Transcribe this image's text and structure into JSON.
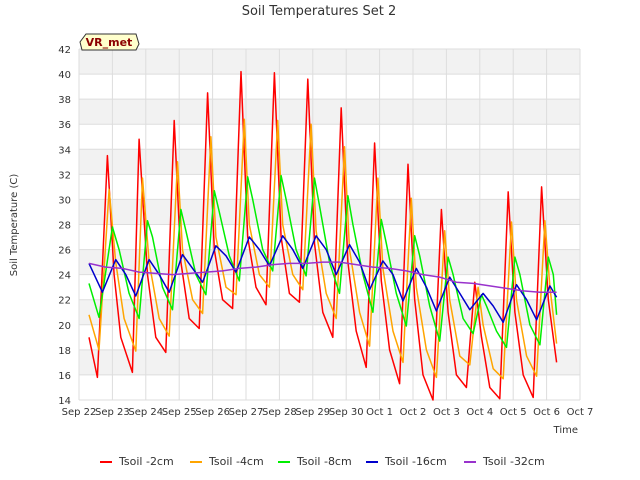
{
  "chart_data": {
    "type": "line",
    "title": "Soil Temperatures Set 2",
    "xlabel": "Time",
    "ylabel": "Soil Temperature (C)",
    "badge": "VR_met",
    "x_ticks": [
      "Sep 22",
      "Sep 23",
      "Sep 24",
      "Sep 25",
      "Sep 26",
      "Sep 27",
      "Sep 28",
      "Sep 29",
      "Sep 30",
      "Oct 1",
      "Oct 2",
      "Oct 3",
      "Oct 4",
      "Oct 5",
      "Oct 6",
      "Oct 7"
    ],
    "xlim": [
      0,
      15
    ],
    "ylim": [
      14,
      42
    ],
    "y_ticks": [
      14,
      16,
      18,
      20,
      22,
      24,
      26,
      28,
      30,
      32,
      34,
      36,
      38,
      40,
      42
    ],
    "grid": true,
    "legend_position": "bottom",
    "series": [
      {
        "name": "Tsoil -2cm",
        "color": "#ff0000",
        "x": [
          0.3,
          0.55,
          0.85,
          1.05,
          1.25,
          1.6,
          1.8,
          2.05,
          2.3,
          2.6,
          2.85,
          3.05,
          3.3,
          3.6,
          3.85,
          4.05,
          4.3,
          4.6,
          4.85,
          5.05,
          5.3,
          5.6,
          5.85,
          6.05,
          6.3,
          6.6,
          6.85,
          7.05,
          7.3,
          7.6,
          7.85,
          8.05,
          8.3,
          8.6,
          8.85,
          9.05,
          9.3,
          9.6,
          9.85,
          10.05,
          10.3,
          10.6,
          10.85,
          11.05,
          11.3,
          11.6,
          11.85,
          12.05,
          12.3,
          12.6,
          12.85,
          13.05,
          13.3,
          13.6,
          13.85,
          14.05,
          14.3
        ],
        "y": [
          19,
          15.8,
          33.5,
          24,
          19,
          16.2,
          34.8,
          24,
          19,
          17.8,
          36.3,
          25,
          20.5,
          19.7,
          38.5,
          26,
          22,
          21.3,
          40.2,
          27,
          23,
          21.6,
          40.1,
          27,
          22.5,
          21.8,
          39.6,
          26.5,
          21,
          19,
          37.3,
          25,
          19.5,
          16.6,
          34.5,
          23.5,
          18,
          15.3,
          32.8,
          22,
          16,
          14,
          29.2,
          21,
          16,
          15,
          23.4,
          19,
          15,
          14.1,
          30.6,
          21,
          16,
          14.2,
          31,
          22,
          17
        ]
      },
      {
        "name": "Tsoil -4cm",
        "color": "#ffa500",
        "x": [
          0.3,
          0.6,
          0.9,
          1.1,
          1.35,
          1.7,
          1.9,
          2.1,
          2.4,
          2.7,
          2.95,
          3.1,
          3.4,
          3.7,
          3.95,
          4.1,
          4.4,
          4.7,
          4.95,
          5.1,
          5.4,
          5.7,
          5.95,
          6.1,
          6.4,
          6.7,
          6.95,
          7.1,
          7.4,
          7.7,
          7.95,
          8.1,
          8.4,
          8.7,
          8.95,
          9.1,
          9.4,
          9.7,
          9.95,
          10.1,
          10.4,
          10.7,
          10.95,
          11.1,
          11.4,
          11.7,
          11.95,
          12.1,
          12.4,
          12.7,
          12.95,
          13.1,
          13.4,
          13.7,
          13.95,
          14.1,
          14.3
        ],
        "y": [
          20.8,
          18,
          30.8,
          25,
          20.5,
          17.9,
          31.7,
          25,
          20.5,
          19.1,
          33,
          26,
          22,
          20.9,
          35,
          27,
          23,
          22.4,
          36.4,
          28,
          24,
          23,
          36.3,
          28,
          24,
          22.8,
          36,
          27.5,
          22.5,
          20.5,
          34.2,
          26,
          21,
          18.3,
          31.7,
          24.5,
          19.5,
          17,
          30.1,
          23,
          18,
          15.8,
          27.5,
          22,
          17.5,
          16.8,
          23,
          20,
          16.5,
          15.7,
          28.2,
          22,
          17.5,
          15.9,
          28.3,
          23,
          18.5
        ]
      },
      {
        "name": "Tsoil -8cm",
        "color": "#00ee00",
        "x": [
          0.3,
          0.6,
          1.0,
          1.2,
          1.5,
          1.8,
          2.05,
          2.2,
          2.5,
          2.8,
          3.05,
          3.2,
          3.5,
          3.8,
          4.05,
          4.2,
          4.5,
          4.8,
          5.05,
          5.2,
          5.5,
          5.8,
          6.05,
          6.2,
          6.5,
          6.8,
          7.05,
          7.2,
          7.5,
          7.8,
          8.05,
          8.2,
          8.5,
          8.8,
          9.05,
          9.2,
          9.5,
          9.8,
          10.05,
          10.2,
          10.5,
          10.8,
          11.05,
          11.2,
          11.5,
          11.8,
          12.05,
          12.2,
          12.5,
          12.8,
          13.05,
          13.2,
          13.5,
          13.8,
          14.05,
          14.2,
          14.3
        ],
        "y": [
          23.3,
          20.6,
          27.8,
          26,
          22.5,
          20.5,
          28.3,
          27,
          23,
          21.2,
          29.2,
          27.5,
          24,
          22.4,
          30.7,
          29,
          25.5,
          23.5,
          31.8,
          30,
          26,
          24.3,
          31.9,
          30,
          26,
          23.9,
          31.7,
          29.5,
          25,
          22.5,
          30.3,
          28,
          24,
          21,
          28.4,
          26.5,
          22.5,
          19.9,
          27.1,
          25.5,
          21.5,
          18.7,
          25.4,
          24,
          20.5,
          19.3,
          22.4,
          21.5,
          19.5,
          18.2,
          25.4,
          24,
          20,
          18.4,
          25.4,
          24,
          20.8
        ]
      },
      {
        "name": "Tsoil -16cm",
        "color": "#0000cc",
        "x": [
          0.3,
          0.7,
          1.1,
          1.4,
          1.7,
          2.1,
          2.4,
          2.7,
          3.1,
          3.4,
          3.7,
          4.1,
          4.4,
          4.7,
          5.1,
          5.4,
          5.7,
          6.1,
          6.4,
          6.7,
          7.1,
          7.4,
          7.7,
          8.1,
          8.4,
          8.7,
          9.1,
          9.4,
          9.7,
          10.1,
          10.4,
          10.7,
          11.1,
          11.4,
          11.7,
          12.1,
          12.4,
          12.7,
          13.1,
          13.4,
          13.7,
          14.1,
          14.3
        ],
        "y": [
          24.9,
          22.6,
          25.2,
          24,
          22.3,
          25.2,
          24,
          22.6,
          25.6,
          24.5,
          23.4,
          26.3,
          25.5,
          24.2,
          27,
          26,
          24.7,
          27.1,
          26,
          24.5,
          27.1,
          26,
          24,
          26.4,
          25,
          22.8,
          25.1,
          24,
          21.9,
          24.5,
          23,
          21.1,
          23.8,
          22.5,
          21.2,
          22.5,
          21.5,
          20.2,
          23.2,
          22,
          20.4,
          23.1,
          22.2
        ]
      },
      {
        "name": "Tsoil -32cm",
        "color": "#9932cc",
        "x": [
          0.3,
          0.8,
          1.3,
          1.8,
          2.3,
          2.8,
          3.3,
          3.8,
          4.3,
          4.8,
          5.3,
          5.8,
          6.3,
          6.8,
          7.3,
          7.8,
          8.3,
          8.8,
          9.3,
          9.8,
          10.3,
          10.8,
          11.3,
          11.8,
          12.3,
          12.8,
          13.3,
          13.8,
          14.3
        ],
        "y": [
          24.9,
          24.6,
          24.5,
          24.2,
          24.1,
          24.0,
          24.1,
          24.2,
          24.3,
          24.5,
          24.6,
          24.8,
          24.9,
          24.9,
          25.0,
          25.0,
          24.8,
          24.6,
          24.5,
          24.3,
          24.0,
          23.8,
          23.4,
          23.3,
          23.1,
          22.9,
          22.7,
          22.6,
          22.6
        ]
      }
    ]
  }
}
